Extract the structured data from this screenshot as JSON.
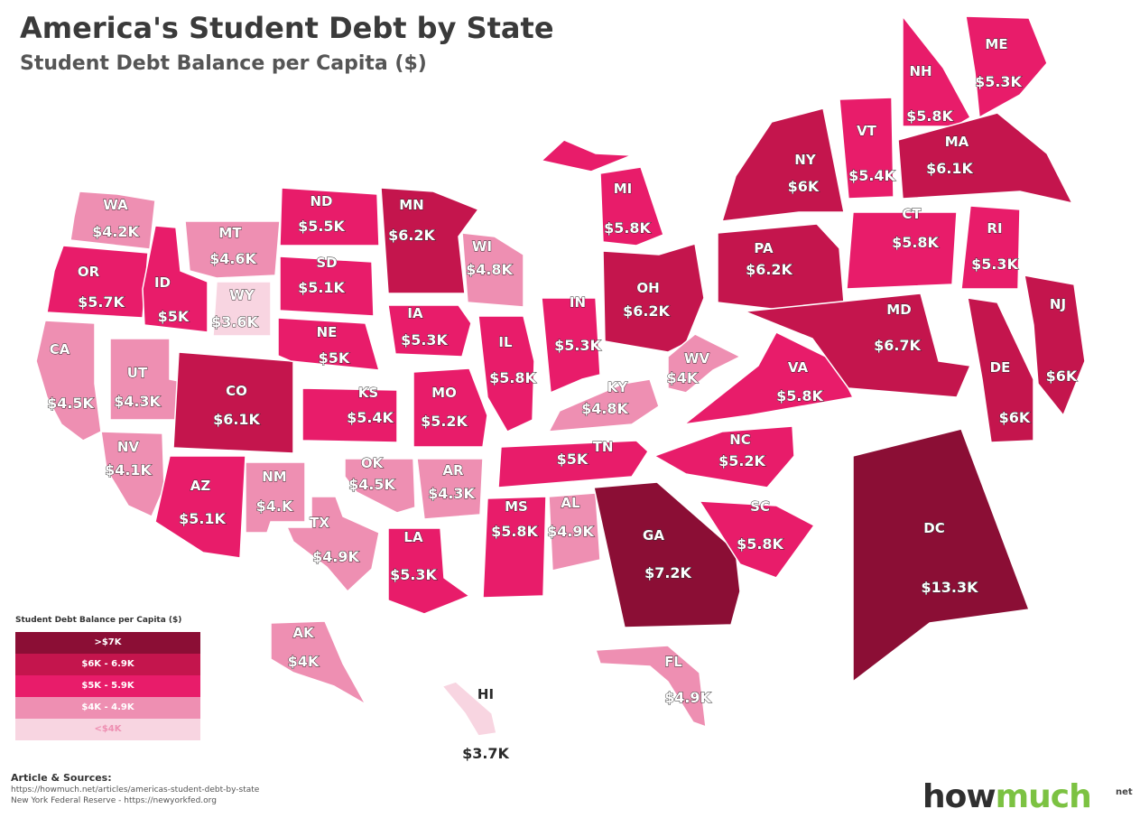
{
  "title": "America's Student Debt by State",
  "subtitle": "Student Debt Balance per Capita ($)",
  "legend": {
    "title": "Student Debt Balance per Capita ($)",
    "items": [
      {
        "label": ">$7K",
        "color": "#8b0e35"
      },
      {
        "label": "$6K - 6.9K",
        "color": "#c4154d"
      },
      {
        "label": "$5K - 5.9K",
        "color": "#e81c6a"
      },
      {
        "label": "$4K - 4.9K",
        "color": "#ee8fb2"
      },
      {
        "label": "<$4K",
        "color": "#f8d5e1"
      }
    ]
  },
  "states": {
    "WA": {
      "abbr": "WA",
      "value": "$4.2K",
      "color": "#ee8fb2"
    },
    "OR": {
      "abbr": "OR",
      "value": "$5.7K",
      "color": "#e81c6a"
    },
    "CA": {
      "abbr": "CA",
      "value": "$4.5K",
      "color": "#ee8fb2"
    },
    "ID": {
      "abbr": "ID",
      "value": "$5K",
      "color": "#e81c6a"
    },
    "NV": {
      "abbr": "NV",
      "value": "$4.1K",
      "color": "#ee8fb2"
    },
    "MT": {
      "abbr": "MT",
      "value": "$4.6K",
      "color": "#ee8fb2"
    },
    "WY": {
      "abbr": "WY",
      "value": "$3.6K",
      "color": "#f8d5e1"
    },
    "UT": {
      "abbr": "UT",
      "value": "$4.3K",
      "color": "#ee8fb2"
    },
    "AZ": {
      "abbr": "AZ",
      "value": "$5.1K",
      "color": "#e81c6a"
    },
    "CO": {
      "abbr": "CO",
      "value": "$6.1K",
      "color": "#c4154d"
    },
    "NM": {
      "abbr": "NM",
      "value": "$4.K",
      "color": "#ee8fb2"
    },
    "ND": {
      "abbr": "ND",
      "value": "$5.5K",
      "color": "#e81c6a"
    },
    "SD": {
      "abbr": "SD",
      "value": "$5.1K",
      "color": "#e81c6a"
    },
    "NE": {
      "abbr": "NE",
      "value": "$5K",
      "color": "#e81c6a"
    },
    "KS": {
      "abbr": "KS",
      "value": "$5.4K",
      "color": "#e81c6a"
    },
    "OK": {
      "abbr": "OK",
      "value": "$4.5K",
      "color": "#ee8fb2"
    },
    "TX": {
      "abbr": "TX",
      "value": "$4.9K",
      "color": "#ee8fb2"
    },
    "MN": {
      "abbr": "MN",
      "value": "$6.2K",
      "color": "#c4154d"
    },
    "IA": {
      "abbr": "IA",
      "value": "$5.3K",
      "color": "#e81c6a"
    },
    "MO": {
      "abbr": "MO",
      "value": "$5.2K",
      "color": "#e81c6a"
    },
    "AR": {
      "abbr": "AR",
      "value": "$4.3K",
      "color": "#ee8fb2"
    },
    "LA": {
      "abbr": "LA",
      "value": "$5.3K",
      "color": "#e81c6a"
    },
    "WI": {
      "abbr": "WI",
      "value": "$4.8K",
      "color": "#ee8fb2"
    },
    "IL": {
      "abbr": "IL",
      "value": "$5.8K",
      "color": "#e81c6a"
    },
    "MI": {
      "abbr": "MI",
      "value": "$5.8K",
      "color": "#e81c6a"
    },
    "IN": {
      "abbr": "IN",
      "value": "$5.3K",
      "color": "#e81c6a"
    },
    "OH": {
      "abbr": "OH",
      "value": "$6.2K",
      "color": "#c4154d"
    },
    "KY": {
      "abbr": "KY",
      "value": "$4.8K",
      "color": "#ee8fb2"
    },
    "TN": {
      "abbr": "TN",
      "value": "$5K",
      "color": "#e81c6a"
    },
    "MS": {
      "abbr": "MS",
      "value": "$5.8K",
      "color": "#e81c6a"
    },
    "AL": {
      "abbr": "AL",
      "value": "$4.9K",
      "color": "#ee8fb2"
    },
    "GA": {
      "abbr": "GA",
      "value": "$7.2K",
      "color": "#8b0e35"
    },
    "FL": {
      "abbr": "FL",
      "value": "$4.9K",
      "color": "#ee8fb2"
    },
    "SC": {
      "abbr": "SC",
      "value": "$5.8K",
      "color": "#e81c6a"
    },
    "NC": {
      "abbr": "NC",
      "value": "$5.2K",
      "color": "#e81c6a"
    },
    "VA": {
      "abbr": "VA",
      "value": "$5.8K",
      "color": "#e81c6a"
    },
    "WV": {
      "abbr": "WV",
      "value": "$4K",
      "color": "#ee8fb2"
    },
    "PA": {
      "abbr": "PA",
      "value": "$6.2K",
      "color": "#c4154d"
    },
    "NY": {
      "abbr": "NY",
      "value": "$6K",
      "color": "#c4154d"
    },
    "VT": {
      "abbr": "VT",
      "value": "$5.4K",
      "color": "#e81c6a"
    },
    "NH": {
      "abbr": "NH",
      "value": "$5.8K",
      "color": "#e81c6a"
    },
    "ME": {
      "abbr": "ME",
      "value": "$5.3K",
      "color": "#e81c6a"
    },
    "MA": {
      "abbr": "MA",
      "value": "$6.1K",
      "color": "#c4154d"
    },
    "CT": {
      "abbr": "CT",
      "value": "$5.8K",
      "color": "#e81c6a"
    },
    "RI": {
      "abbr": "RI",
      "value": "$5.3K",
      "color": "#e81c6a"
    },
    "NJ": {
      "abbr": "NJ",
      "value": "$6K",
      "color": "#c4154d"
    },
    "DE": {
      "abbr": "DE",
      "value": "$6K",
      "color": "#c4154d"
    },
    "MD": {
      "abbr": "MD",
      "value": "$6.7K",
      "color": "#c4154d"
    },
    "DC": {
      "abbr": "DC",
      "value": "$13.3K",
      "color": "#8b0e35"
    },
    "AK": {
      "abbr": "AK",
      "value": "$4K",
      "color": "#ee8fb2"
    },
    "HI": {
      "abbr": "HI",
      "value": "$3.7K",
      "color": "#f8d5e1"
    }
  },
  "sources": {
    "title": "Article & Sources:",
    "line1": "https://howmuch.net/articles/americas-student-debt-by-state",
    "line2": "New York Federal Reserve - https://newyorkfed.org"
  },
  "logo": {
    "part1": "how",
    "part2": "much",
    "suffix": "net"
  }
}
